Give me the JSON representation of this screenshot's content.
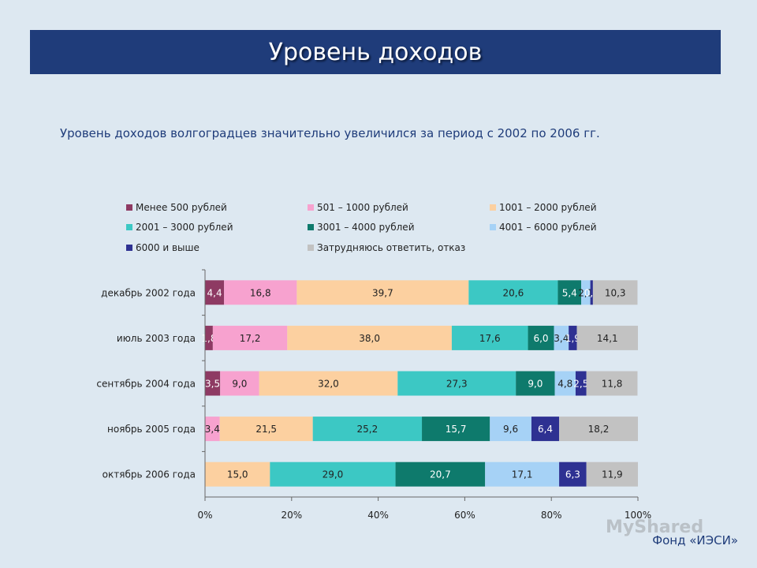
{
  "header": {
    "title": "Уровень доходов"
  },
  "subtitle": "Уровень доходов волгоградцев значительно увеличился за период с 2002 по 2006 гг.",
  "footer": {
    "credit": "Фонд «ИЭСИ»",
    "watermark": "MyShared"
  },
  "chart_data": {
    "type": "bar",
    "orientation": "horizontal",
    "stacked": "percent",
    "categories": [
      "декабрь 2002 года",
      "июль 2003 года",
      "сентябрь 2004 года",
      "ноябрь 2005 года",
      "октябрь 2006 года"
    ],
    "series": [
      {
        "name": "Менее 500 рублей",
        "color": "#8e3a63",
        "values": [
          4.4,
          1.8,
          3.5,
          0,
          0
        ]
      },
      {
        "name": "501 – 1000 рублей",
        "color": "#f7a2cf",
        "values": [
          16.8,
          17.2,
          9.0,
          3.4,
          0
        ]
      },
      {
        "name": "1001 – 2000 рублей",
        "color": "#fcd0a0",
        "values": [
          39.7,
          38.0,
          32.0,
          21.5,
          15.0
        ]
      },
      {
        "name": "2001 – 3000 рублей",
        "color": "#3cc8c4",
        "values": [
          20.6,
          17.6,
          27.3,
          25.2,
          29.0
        ]
      },
      {
        "name": "3001 – 4000 рублей",
        "color": "#0e7a6c",
        "values": [
          5.4,
          6.0,
          9.0,
          15.7,
          20.7
        ]
      },
      {
        "name": "4001 – 6000 рублей",
        "color": "#a6d2f6",
        "values": [
          2.1,
          3.4,
          4.8,
          9.6,
          17.1
        ]
      },
      {
        "name": "6000 и выше",
        "color": "#2e3192",
        "values": [
          0.6,
          1.9,
          2.5,
          6.4,
          6.3
        ]
      },
      {
        "name": "Затрудняюсь ответить, отказ",
        "color": "#c2c2c2",
        "values": [
          10.3,
          14.1,
          11.8,
          18.2,
          11.9
        ]
      }
    ],
    "value_labels": [
      [
        "4,4",
        "16,8",
        "39,7",
        "20,6",
        "5,4",
        "2,1",
        "0,6",
        "10,3"
      ],
      [
        "1,8",
        "17,2",
        "38,0",
        "17,6",
        "6,0",
        "3,4",
        "1,9",
        "14,1"
      ],
      [
        "3,5",
        "9,0",
        "32,0",
        "27,3",
        "9,0",
        "4,8",
        "2,5",
        "11,8"
      ],
      [
        "",
        "3,4",
        "21,5",
        "25,2",
        "15,7",
        "9,6",
        "6,4",
        "18,2"
      ],
      [
        "",
        "",
        "15,0",
        "29,0",
        "20,7",
        "17,1",
        "6,3",
        "11,9"
      ]
    ],
    "x_ticks": [
      "0%",
      "20%",
      "40%",
      "60%",
      "80%",
      "100%"
    ],
    "xlim": [
      0,
      100
    ],
    "legend_position": "top",
    "grid": false
  }
}
